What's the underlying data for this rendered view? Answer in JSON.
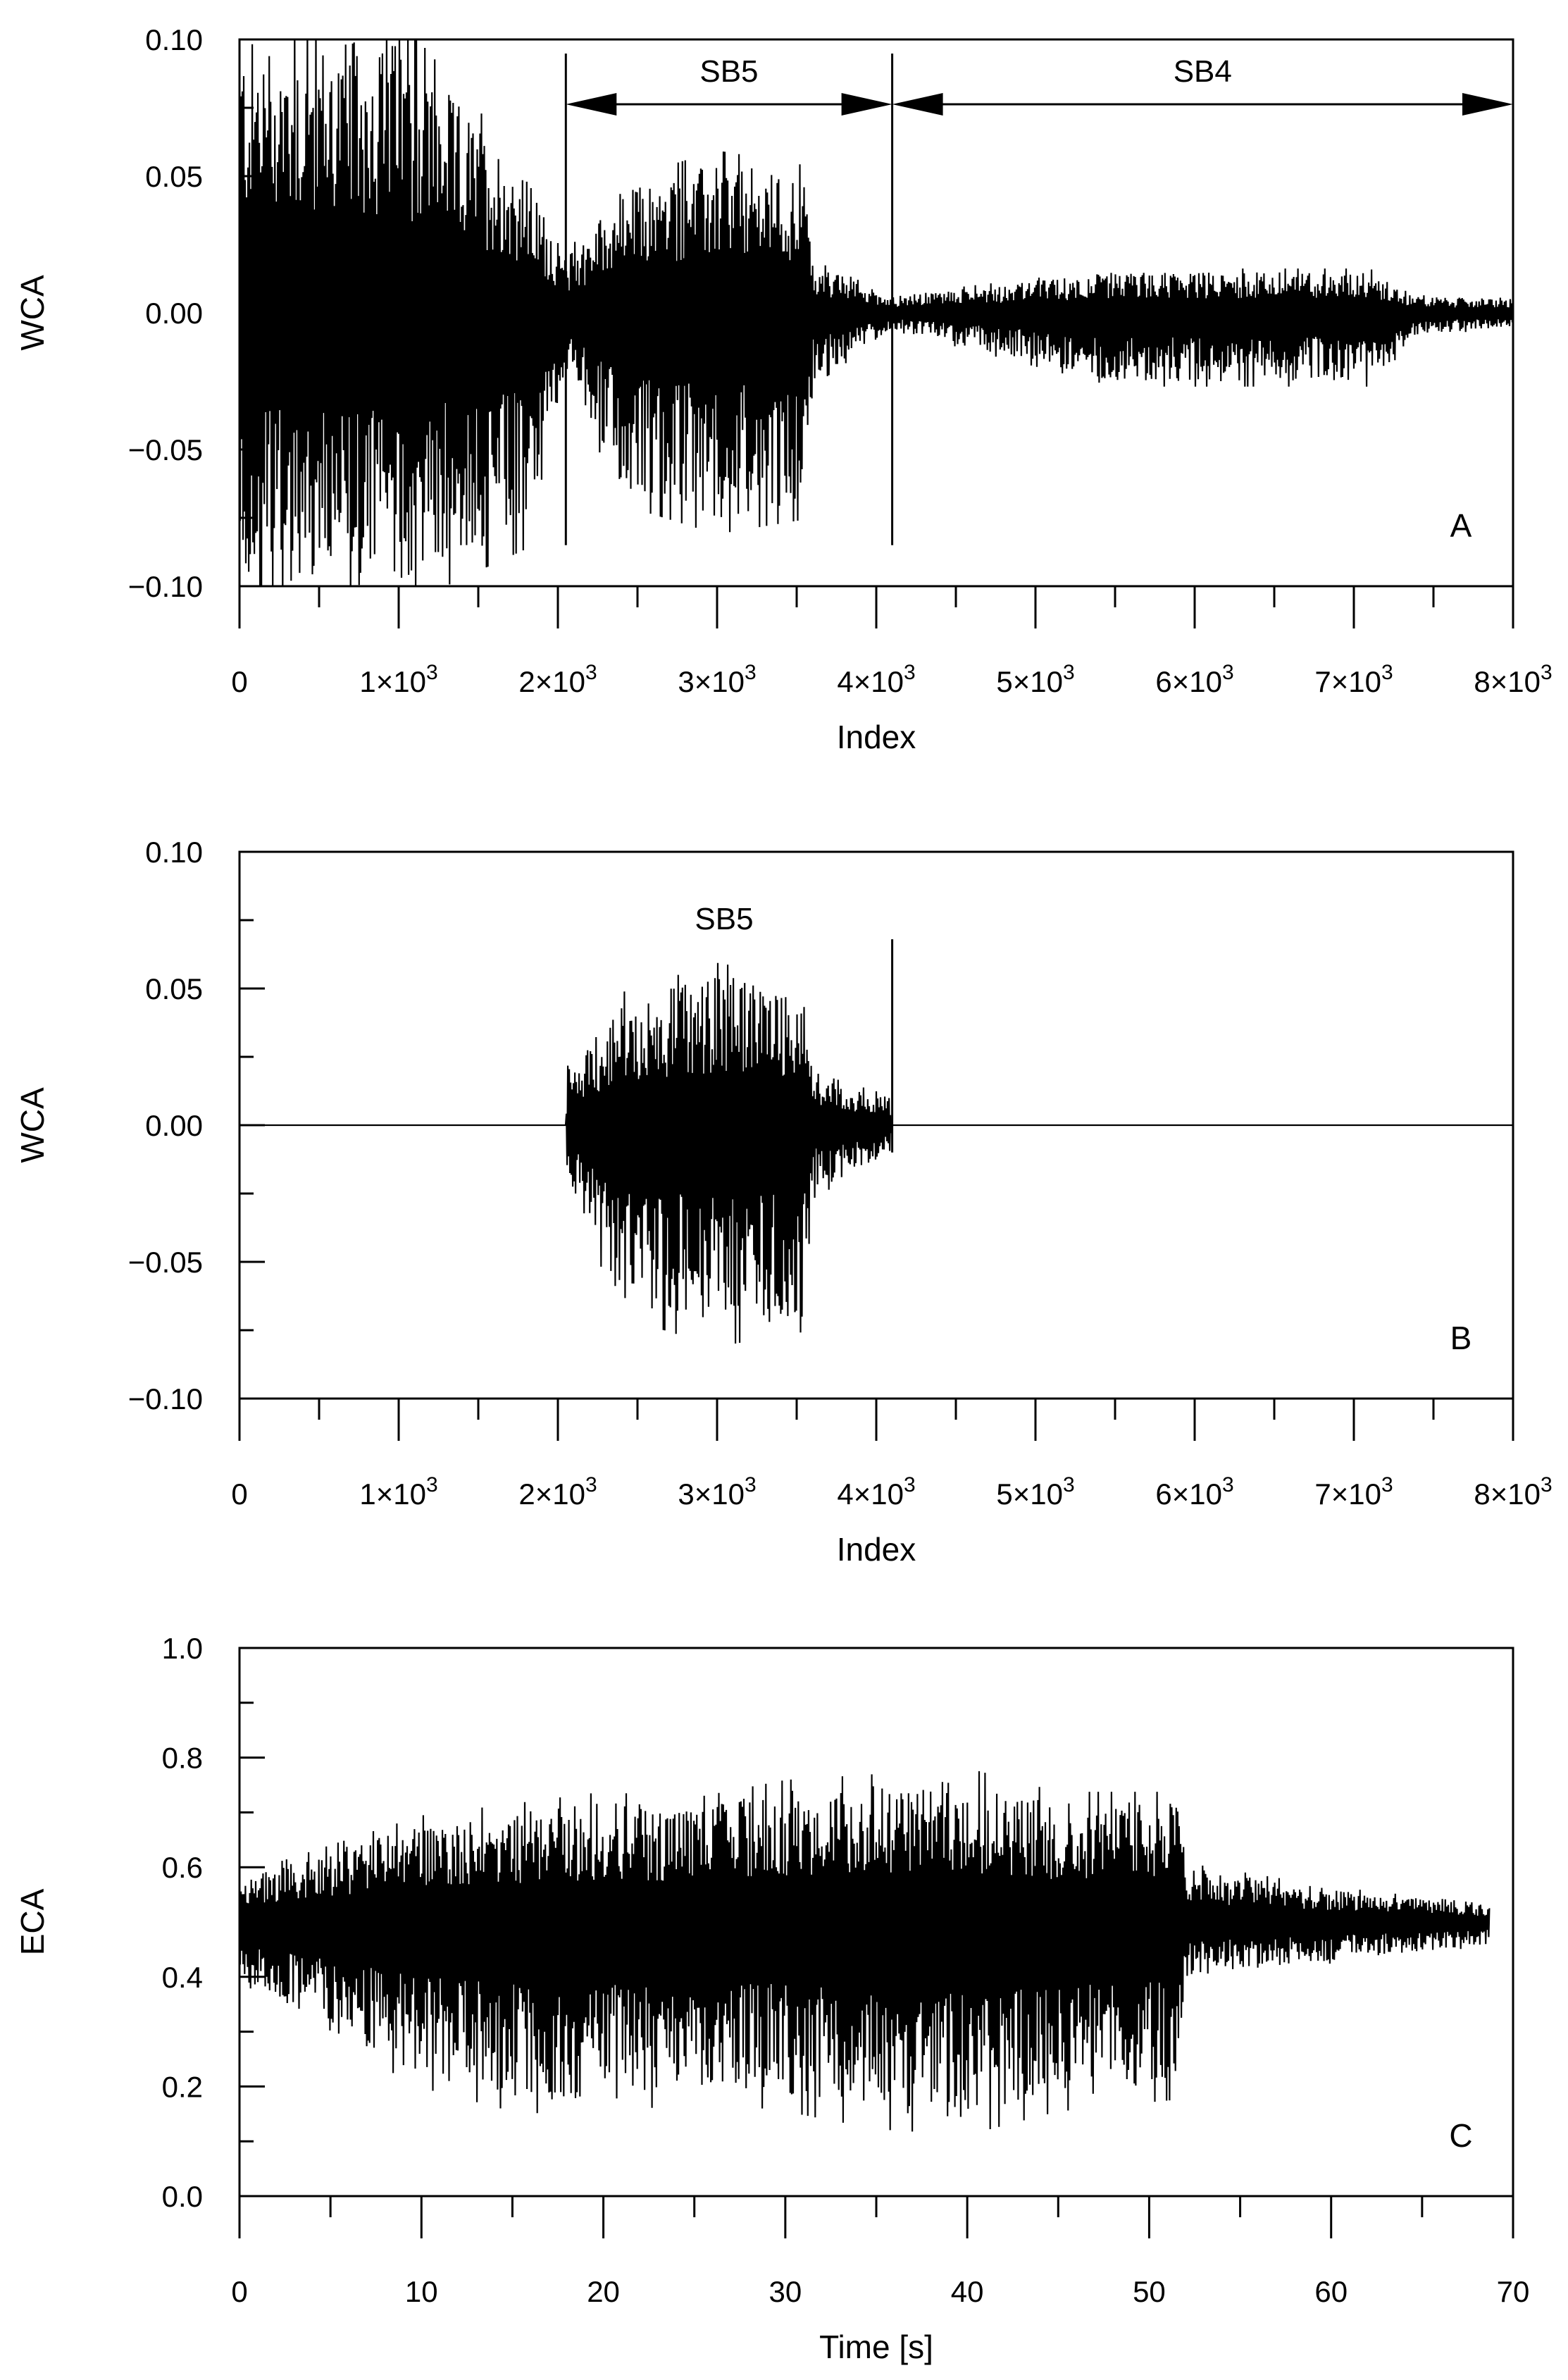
{
  "chart_data": [
    {
      "type": "line",
      "panel": "A",
      "ylabel": "WCA",
      "xlabel": "Index",
      "xlim": [
        0,
        8000
      ],
      "ylim": [
        -0.1,
        0.1
      ],
      "xticks": [
        "0",
        "1×10",
        "2×10",
        "3×10",
        "4×10",
        "5×10",
        "6×10",
        "7×10",
        "8×10"
      ],
      "xtick_exponent": "3",
      "yticks": [
        "−0.10",
        "−0.05",
        "0.00",
        "0.05",
        "0.10"
      ],
      "annotations": [
        {
          "label": "SB5",
          "from": 2050,
          "to": 4100
        },
        {
          "label": "SB4",
          "from": 4100,
          "to": 8000
        }
      ],
      "envelope": [
        {
          "x": 0,
          "upper": 0.1,
          "lower": -0.1
        },
        {
          "x": 1000,
          "upper": 0.1,
          "lower": -0.1
        },
        {
          "x": 1800,
          "upper": 0.05,
          "lower": -0.08
        },
        {
          "x": 2050,
          "upper": 0.02,
          "lower": -0.02
        },
        {
          "x": 2400,
          "upper": 0.045,
          "lower": -0.065
        },
        {
          "x": 3000,
          "upper": 0.055,
          "lower": -0.075
        },
        {
          "x": 3550,
          "upper": 0.05,
          "lower": -0.07
        },
        {
          "x": 3600,
          "upper": 0.018,
          "lower": -0.025
        },
        {
          "x": 4100,
          "upper": 0.006,
          "lower": -0.006
        },
        {
          "x": 5500,
          "upper": 0.015,
          "lower": -0.025
        },
        {
          "x": 7100,
          "upper": 0.015,
          "lower": -0.025
        },
        {
          "x": 7400,
          "upper": 0.006,
          "lower": -0.008
        },
        {
          "x": 8000,
          "upper": 0.005,
          "lower": -0.005
        }
      ]
    },
    {
      "type": "line",
      "panel": "B",
      "ylabel": "WCA",
      "xlabel": "Index",
      "xlim": [
        0,
        8000
      ],
      "ylim": [
        -0.1,
        0.1
      ],
      "xticks": [
        "0",
        "1×10",
        "2×10",
        "3×10",
        "4×10",
        "5×10",
        "6×10",
        "7×10",
        "8×10"
      ],
      "xtick_exponent": "3",
      "yticks": [
        "−0.10",
        "−0.05",
        "0.00",
        "0.05",
        "0.10"
      ],
      "annotations": [
        {
          "label": "SB5",
          "x": 3000
        }
      ],
      "envelope": [
        {
          "x": 0,
          "upper": 0.0,
          "lower": 0.0
        },
        {
          "x": 2050,
          "upper": 0.0,
          "lower": 0.0
        },
        {
          "x": 2060,
          "upper": 0.02,
          "lower": -0.02
        },
        {
          "x": 2400,
          "upper": 0.045,
          "lower": -0.065
        },
        {
          "x": 3000,
          "upper": 0.055,
          "lower": -0.075
        },
        {
          "x": 3550,
          "upper": 0.05,
          "lower": -0.07
        },
        {
          "x": 3600,
          "upper": 0.018,
          "lower": -0.025
        },
        {
          "x": 4090,
          "upper": 0.01,
          "lower": -0.01
        },
        {
          "x": 4100,
          "upper": 0.0,
          "lower": 0.0
        },
        {
          "x": 8000,
          "upper": 0.0,
          "lower": 0.0
        }
      ]
    },
    {
      "type": "line",
      "panel": "C",
      "ylabel": "ECA",
      "xlabel": "Time [s]",
      "xlim": [
        0,
        70
      ],
      "ylim": [
        0.0,
        1.0
      ],
      "xticks": [
        "0",
        "10",
        "20",
        "30",
        "40",
        "50",
        "60",
        "70"
      ],
      "yticks": [
        "0.0",
        "0.2",
        "0.4",
        "0.6",
        "0.8",
        "1.0"
      ],
      "envelope": [
        {
          "x": 0,
          "upper": 0.58,
          "lower": 0.4
        },
        {
          "x": 5,
          "upper": 0.63,
          "lower": 0.3
        },
        {
          "x": 10,
          "upper": 0.68,
          "lower": 0.22
        },
        {
          "x": 15,
          "upper": 0.7,
          "lower": 0.18
        },
        {
          "x": 20,
          "upper": 0.72,
          "lower": 0.17
        },
        {
          "x": 25,
          "upper": 0.71,
          "lower": 0.2
        },
        {
          "x": 30,
          "upper": 0.74,
          "lower": 0.18
        },
        {
          "x": 35,
          "upper": 0.75,
          "lower": 0.15
        },
        {
          "x": 40,
          "upper": 0.76,
          "lower": 0.14
        },
        {
          "x": 45,
          "upper": 0.72,
          "lower": 0.18
        },
        {
          "x": 51.5,
          "upper": 0.72,
          "lower": 0.2
        },
        {
          "x": 52,
          "upper": 0.6,
          "lower": 0.4
        },
        {
          "x": 60,
          "upper": 0.56,
          "lower": 0.43
        },
        {
          "x": 68.7,
          "upper": 0.53,
          "lower": 0.46
        }
      ]
    }
  ]
}
